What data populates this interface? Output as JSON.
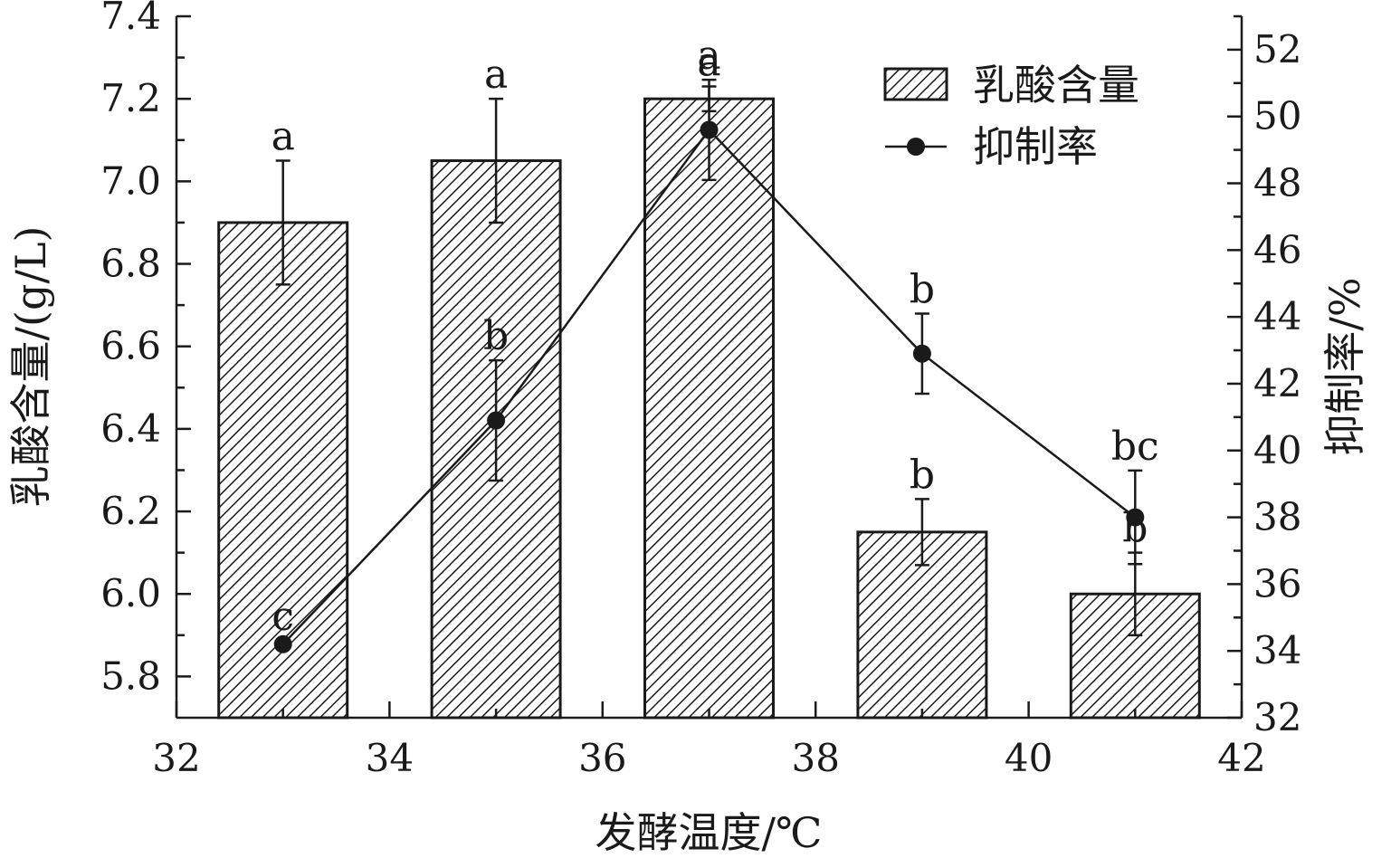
{
  "chart_data": {
    "type": "bar",
    "x_axis": {
      "label": "发酵温度/℃",
      "range": [
        32,
        42
      ],
      "ticks": [
        32,
        34,
        36,
        38,
        40,
        42
      ]
    },
    "y_left": {
      "label": "乳酸含量/(g/L)",
      "range": [
        5.7,
        7.4
      ],
      "ticks": [
        "5.8",
        "6.0",
        "6.2",
        "6.4",
        "6.6",
        "6.8",
        "7.0",
        "7.2",
        "7.4"
      ]
    },
    "y_right": {
      "label": "抑制率/%",
      "range": [
        32,
        53
      ],
      "ticks": [
        "32",
        "34",
        "36",
        "38",
        "40",
        "42",
        "44",
        "46",
        "48",
        "50",
        "52"
      ]
    },
    "series": [
      {
        "name": "乳酸含量",
        "type": "bar",
        "axis": "left",
        "x": [
          33,
          35,
          37,
          39,
          41
        ],
        "values": [
          6.9,
          7.05,
          7.2,
          6.15,
          6.0
        ],
        "errors": [
          0.15,
          0.15,
          0.03,
          0.08,
          0.1
        ],
        "labels": [
          "a",
          "a",
          "a",
          "b",
          "b"
        ]
      },
      {
        "name": "抑制率",
        "type": "line",
        "axis": "right",
        "x": [
          33,
          35,
          37,
          39,
          41
        ],
        "values": [
          34.2,
          40.9,
          49.6,
          42.9,
          38.0
        ],
        "errors": [
          0.1,
          1.8,
          1.5,
          1.2,
          1.4
        ],
        "labels": [
          "c",
          "b",
          "a",
          "b",
          "bc"
        ]
      }
    ],
    "legend": "top-right",
    "grid": false
  }
}
